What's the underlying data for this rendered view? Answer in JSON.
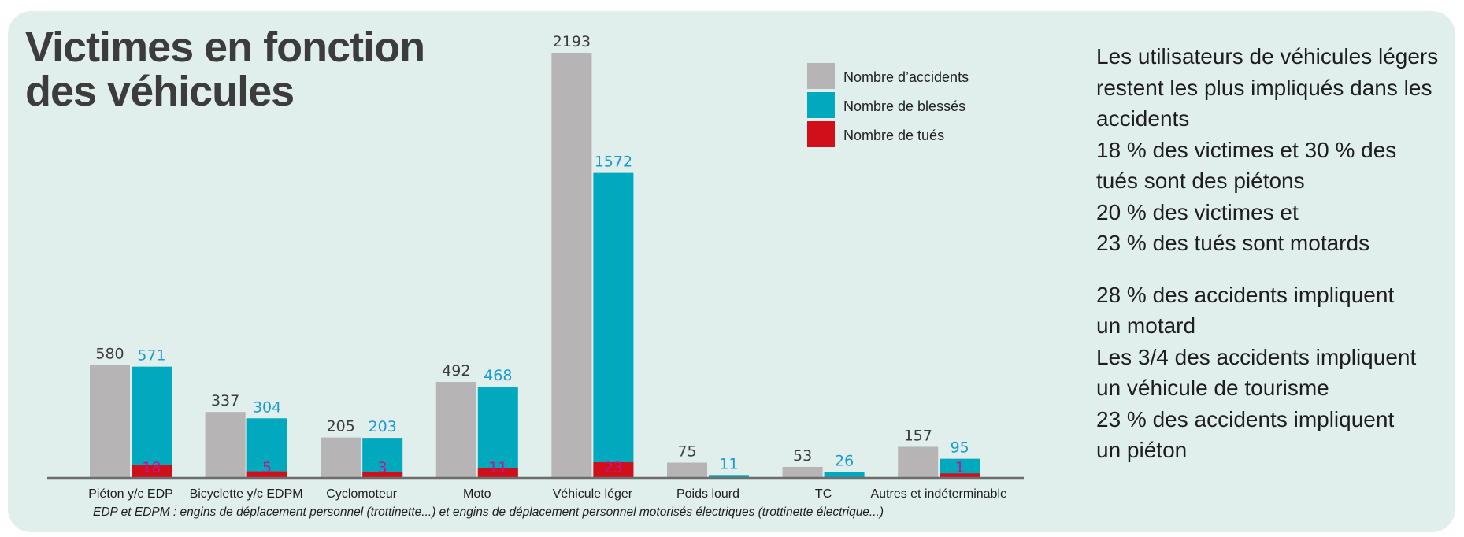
{
  "title_lines": [
    "Victimes en fonction",
    "des véhicules"
  ],
  "side_text": {
    "block1": [
      "Les utilisateurs de véhicules légers",
      "restent les plus impliqués dans les",
      "accidents",
      "18 % des victimes et 30 % des",
      "tués sont des piétons",
      "20 % des victimes et",
      "23 % des tués sont motards"
    ],
    "block2": [
      "28 % des accidents impliquent",
      "un motard",
      "Les 3/4 des accidents impliquent",
      "un véhicule de tourisme",
      "23 % des accidents impliquent",
      "un piéton"
    ]
  },
  "footnote": "EDP et EDPM : engins de déplacement personnel (trottinette...) et engins de déplacement personnel motorisés électriques (trottinette électrique...)",
  "chart_data": {
    "type": "bar",
    "title": "Victimes en fonction des véhicules",
    "categories": [
      "Piéton y/c EDP",
      "Bicyclette y/c EDPM",
      "Cyclomoteur",
      "Moto",
      "Véhicule léger",
      "Poids lourd",
      "TC",
      "Autres et indéterminable"
    ],
    "series": [
      {
        "name": "Nombre d’accidents",
        "color": "#b6b4b5",
        "label_color": "#3c3c3c",
        "values": [
          580,
          337,
          205,
          492,
          2193,
          75,
          53,
          157
        ]
      },
      {
        "name": "Nombre de blessés",
        "color": "#00a9bd",
        "label_color": "#1a9bd0",
        "values": [
          571,
          304,
          203,
          468,
          1572,
          11,
          26,
          95
        ]
      },
      {
        "name": "Nombre de tués",
        "color": "#d10f1b",
        "label_color": "#c0188c",
        "values": [
          18,
          5,
          3,
          11,
          23,
          null,
          null,
          1
        ]
      }
    ],
    "ylim": [
      0,
      2193
    ],
    "grid": false,
    "legend_position": "top-right"
  }
}
